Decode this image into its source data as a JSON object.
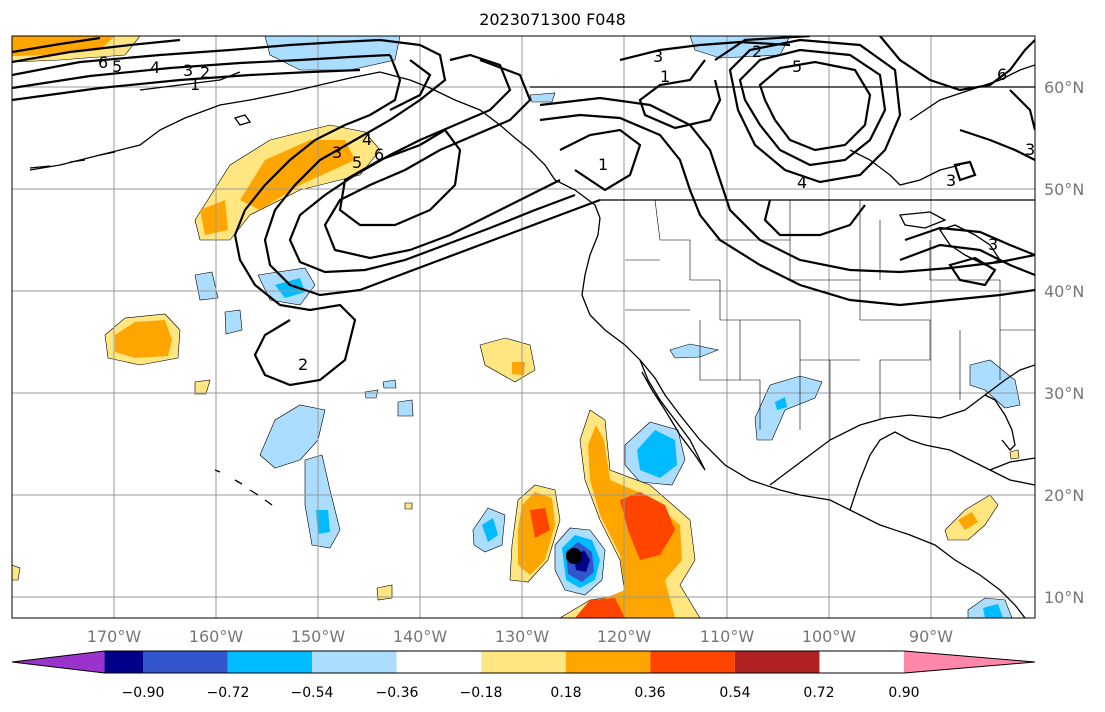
{
  "title": "2023071300 F048",
  "lon_ticks": [
    "170°W",
    "160°W",
    "150°W",
    "140°W",
    "130°W",
    "120°W",
    "110°W",
    "100°W",
    "90°W"
  ],
  "lat_ticks": [
    "60°N",
    "50°N",
    "40°N",
    "30°N",
    "20°N",
    "10°N"
  ],
  "colorbar": {
    "labels": [
      "−0.90",
      "−0.72",
      "−0.54",
      "−0.36",
      "−0.18",
      "0.18",
      "0.36",
      "0.54",
      "0.72",
      "0.90"
    ],
    "colors": [
      "#9933cc",
      "#000088",
      "#3355cc",
      "#00bbff",
      "#aaddff",
      "#ffffff",
      "#ffe680",
      "#ffa500",
      "#ff4400",
      "#b22222",
      "#ff88aa"
    ]
  },
  "contour_labels": [
    "6",
    "5",
    "4",
    "3",
    "2",
    "1",
    "3",
    "4",
    "5",
    "6",
    "2",
    "3",
    "2",
    "1",
    "5",
    "4",
    "3",
    "6",
    "3",
    "1",
    "3"
  ],
  "colors": {
    "contour": "#000000",
    "grid": "#999999",
    "coast": "#000000"
  }
}
